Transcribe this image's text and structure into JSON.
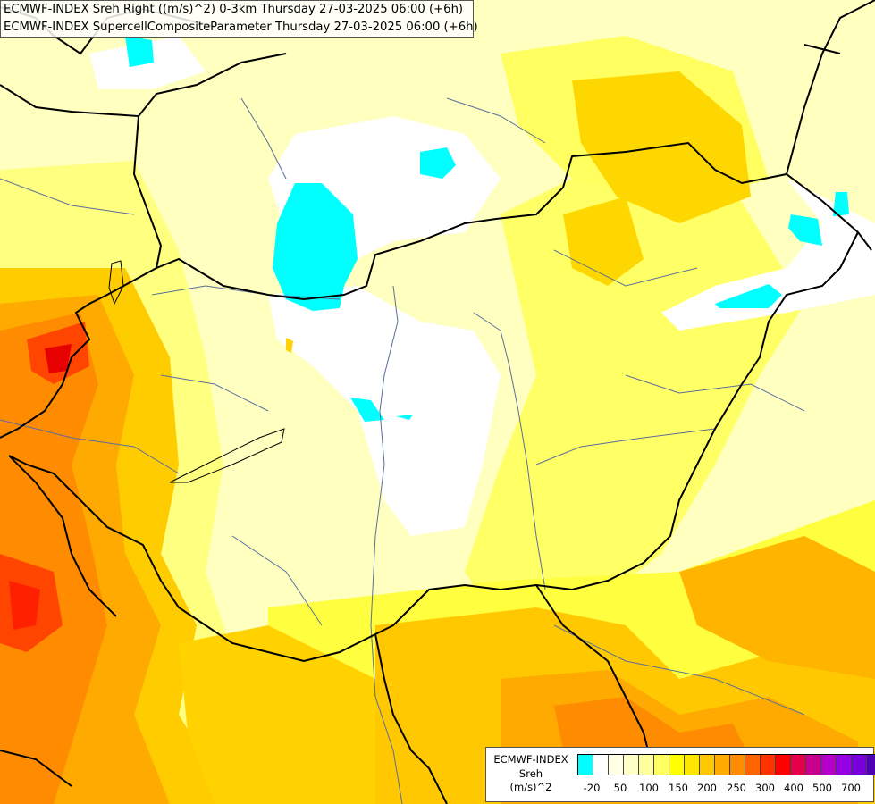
{
  "title": {
    "line1": "ECMWF-INDEX Sreh Right ((m/s)^2) 0-3km Thursday 27-03-2025 06:00 (+6h)",
    "line2": "ECMWF-INDEX SupercellCompositeParameter Thursday 27-03-2025 06:00 (+6h)"
  },
  "legend": {
    "line1": "ECMWF-INDEX",
    "line2": "Sreh",
    "line3": "(m/s)^2",
    "colors": [
      "#00ffff",
      "#ffffff",
      "#ffffe6",
      "#ffffc8",
      "#ffffa0",
      "#ffff64",
      "#ffff00",
      "#ffe600",
      "#ffc800",
      "#ffaa00",
      "#ff8c00",
      "#ff6400",
      "#ff3200",
      "#ff0000",
      "#e6004b",
      "#c8008c",
      "#b400c8",
      "#9600e6",
      "#7800dc",
      "#5000b4",
      "#2800a0",
      "#000080"
    ],
    "ticks": [
      "-20",
      "50",
      "100",
      "150",
      "200",
      "250",
      "300",
      "400",
      "500",
      "700"
    ]
  },
  "colors": {
    "cyan": "#00ffff",
    "white": "#ffffff",
    "pale": "#ffffc0",
    "light_yellow": "#ffff80",
    "yellow": "#ffff00",
    "gold": "#ffd700",
    "orange": "#ffaa00",
    "dark_orange": "#ff7f00",
    "red_orange": "#ff4500",
    "red": "#ff2000",
    "border": "#000000",
    "river": "#5a6e9a"
  }
}
